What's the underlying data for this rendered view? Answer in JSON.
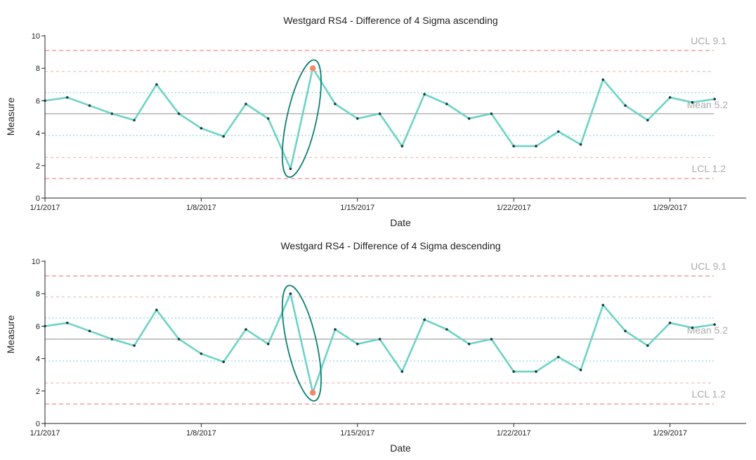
{
  "colors": {
    "series": "#6dd3c8",
    "point": "#1d3a3a",
    "highlight": "#f08a66",
    "ellipse": "#0e7f74",
    "mean": "#b3b3b3",
    "ucl_lcl": "#f5a5a5",
    "sigma2": "#f7c3c3",
    "sigma1": "#9fe3ea",
    "ref_label": "#aaaaaa"
  },
  "chart_data": [
    {
      "type": "line",
      "title": "Westgard RS4 - Difference of 4 Sigma ascending",
      "xlabel": "Date",
      "ylabel": "Measure",
      "ylim": [
        0,
        10
      ],
      "xlim_days": [
        "1/1/2017",
        "1/32/2017"
      ],
      "y_ticks": [
        "0",
        "2",
        "4",
        "6",
        "8",
        "10"
      ],
      "x_ticks": [
        {
          "day": 0,
          "label": "1/1/2017"
        },
        {
          "day": 7,
          "label": "1/8/2017"
        },
        {
          "day": 14,
          "label": "1/15/2017"
        },
        {
          "day": 21,
          "label": "1/22/2017"
        },
        {
          "day": 28,
          "label": "1/29/2017"
        }
      ],
      "x": [
        "1/1/2017",
        "1/2/2017",
        "1/3/2017",
        "1/4/2017",
        "1/5/2017",
        "1/6/2017",
        "1/7/2017",
        "1/8/2017",
        "1/9/2017",
        "1/10/2017",
        "1/11/2017",
        "1/12/2017",
        "1/13/2017",
        "1/14/2017",
        "1/15/2017",
        "1/16/2017",
        "1/17/2017",
        "1/18/2017",
        "1/19/2017",
        "1/20/2017",
        "1/21/2017",
        "1/22/2017",
        "1/23/2017",
        "1/24/2017",
        "1/25/2017",
        "1/26/2017",
        "1/27/2017",
        "1/28/2017",
        "1/29/2017",
        "1/30/2017",
        "1/31/2017"
      ],
      "values": [
        6.0,
        6.2,
        5.7,
        5.2,
        4.8,
        7.0,
        5.2,
        4.3,
        3.8,
        5.8,
        4.9,
        1.8,
        8.0,
        5.8,
        4.9,
        5.2,
        3.2,
        6.4,
        5.8,
        4.9,
        5.2,
        3.2,
        3.2,
        4.1,
        3.3,
        7.3,
        5.7,
        4.8,
        6.2,
        5.9,
        6.1
      ],
      "highlight_index": 12,
      "ellipse_indices": [
        11,
        12
      ],
      "reference_lines": {
        "ucl": 9.1,
        "lcl": 1.2,
        "mean": 5.2,
        "plus2sigma": 7.8,
        "minus2sigma": 2.5,
        "plus1sigma": 6.5,
        "minus1sigma": 3.85
      },
      "ref_labels": {
        "ucl": "UCL 9.1",
        "mean": "Mean 5.2",
        "lcl": "LCL 1.2"
      },
      "grid": false,
      "legend": "none"
    },
    {
      "type": "line",
      "title": "Westgard RS4 - Difference of 4 Sigma descending",
      "xlabel": "Date",
      "ylabel": "Measure",
      "ylim": [
        0,
        10
      ],
      "y_ticks": [
        "0",
        "2",
        "4",
        "6",
        "8",
        "10"
      ],
      "x_ticks": [
        {
          "day": 0,
          "label": "1/1/2017"
        },
        {
          "day": 7,
          "label": "1/8/2017"
        },
        {
          "day": 14,
          "label": "1/15/2017"
        },
        {
          "day": 21,
          "label": "1/22/2017"
        },
        {
          "day": 28,
          "label": "1/29/2017"
        }
      ],
      "x": [
        "1/1/2017",
        "1/2/2017",
        "1/3/2017",
        "1/4/2017",
        "1/5/2017",
        "1/6/2017",
        "1/7/2017",
        "1/8/2017",
        "1/9/2017",
        "1/10/2017",
        "1/11/2017",
        "1/12/2017",
        "1/13/2017",
        "1/14/2017",
        "1/15/2017",
        "1/16/2017",
        "1/17/2017",
        "1/18/2017",
        "1/19/2017",
        "1/20/2017",
        "1/21/2017",
        "1/22/2017",
        "1/23/2017",
        "1/24/2017",
        "1/25/2017",
        "1/26/2017",
        "1/27/2017",
        "1/28/2017",
        "1/29/2017",
        "1/30/2017",
        "1/31/2017"
      ],
      "values": [
        6.0,
        6.2,
        5.7,
        5.2,
        4.8,
        7.0,
        5.2,
        4.3,
        3.8,
        5.8,
        4.9,
        8.0,
        1.9,
        5.8,
        4.9,
        5.2,
        3.2,
        6.4,
        5.8,
        4.9,
        5.2,
        3.2,
        3.2,
        4.1,
        3.3,
        7.3,
        5.7,
        4.8,
        6.2,
        5.9,
        6.1
      ],
      "highlight_index": 12,
      "ellipse_indices": [
        11,
        12
      ],
      "reference_lines": {
        "ucl": 9.1,
        "lcl": 1.2,
        "mean": 5.2,
        "plus2sigma": 7.8,
        "minus2sigma": 2.5,
        "plus1sigma": 6.5,
        "minus1sigma": 3.85
      },
      "ref_labels": {
        "ucl": "UCL 9.1",
        "mean": "Mean 5.2",
        "lcl": "LCL 1.2"
      },
      "grid": false,
      "legend": "none"
    }
  ]
}
